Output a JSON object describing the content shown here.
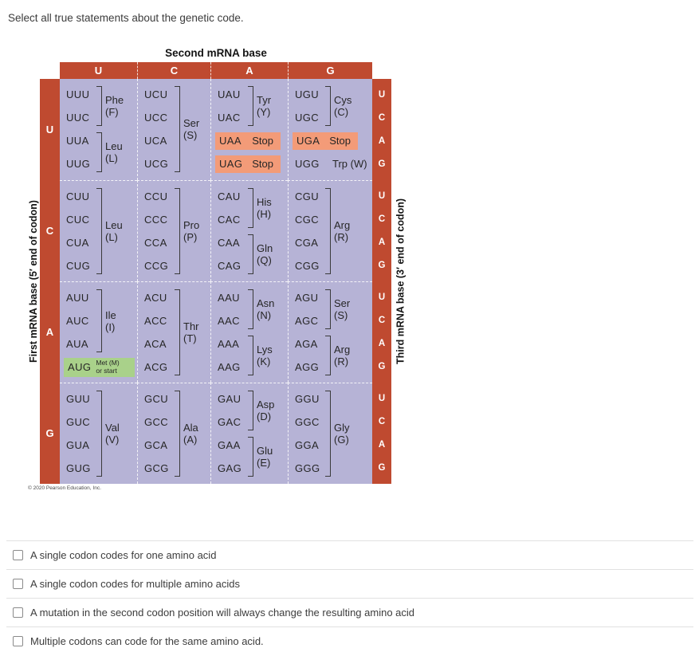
{
  "question": "Select all true statements about the genetic code.",
  "table": {
    "title": "Second mRNA base",
    "left_axis_label": "First mRNA base  (5′ end of codon)",
    "right_axis_label": "Third mRNA base  (3′ end of codon)",
    "column_headers": [
      "U",
      "C",
      "A",
      "G"
    ],
    "row_headers": [
      "U",
      "C",
      "A",
      "G"
    ],
    "third_base_letters": [
      "U",
      "C",
      "A",
      "G"
    ],
    "copyright": "© 2020 Pearson Education, Inc.",
    "colors": {
      "bar_red": "#bf4a30",
      "body_lavender": "#b6b3d6",
      "stop_highlight": "#f39b78",
      "start_highlight": "#a9d18a"
    },
    "cells": [
      [
        {
          "groups": [
            {
              "codons": [
                "UUU",
                "UUC"
              ],
              "bracket": true,
              "name": "Phe",
              "letter": "(F)"
            },
            {
              "codons": [
                "UUA",
                "UUG"
              ],
              "bracket": true,
              "name": "Leu",
              "letter": "(L)"
            }
          ]
        },
        {
          "groups": [
            {
              "codons": [
                "UCU",
                "UCC",
                "UCA",
                "UCG"
              ],
              "bracket": true,
              "name": "Ser",
              "letter": "(S)"
            }
          ]
        },
        {
          "groups": [
            {
              "codons": [
                "UAU",
                "UAC"
              ],
              "bracket": true,
              "name": "Tyr",
              "letter": "(Y)"
            },
            {
              "codons": [
                "UAA"
              ],
              "highlight": "stop",
              "stop_label": "Stop"
            },
            {
              "codons": [
                "UAG"
              ],
              "highlight": "stop",
              "stop_label": "Stop"
            }
          ]
        },
        {
          "groups": [
            {
              "codons": [
                "UGU",
                "UGC"
              ],
              "bracket": true,
              "name": "Cys",
              "letter": "(C)"
            },
            {
              "codons": [
                "UGA"
              ],
              "highlight": "stop",
              "stop_label": "Stop"
            },
            {
              "codons": [
                "UGG"
              ],
              "inline_label": "Trp (W)"
            }
          ]
        }
      ],
      [
        {
          "groups": [
            {
              "codons": [
                "CUU",
                "CUC",
                "CUA",
                "CUG"
              ],
              "bracket": true,
              "name": "Leu",
              "letter": "(L)"
            }
          ]
        },
        {
          "groups": [
            {
              "codons": [
                "CCU",
                "CCC",
                "CCA",
                "CCG"
              ],
              "bracket": true,
              "name": "Pro",
              "letter": "(P)"
            }
          ]
        },
        {
          "groups": [
            {
              "codons": [
                "CAU",
                "CAC"
              ],
              "bracket": true,
              "name": "His",
              "letter": "(H)"
            },
            {
              "codons": [
                "CAA",
                "CAG"
              ],
              "bracket": true,
              "name": "Gln",
              "letter": "(Q)"
            }
          ]
        },
        {
          "groups": [
            {
              "codons": [
                "CGU",
                "CGC",
                "CGA",
                "CGG"
              ],
              "bracket": true,
              "name": "Arg",
              "letter": "(R)"
            }
          ]
        }
      ],
      [
        {
          "groups": [
            {
              "codons": [
                "AUU",
                "AUC",
                "AUA"
              ],
              "bracket": true,
              "name": "Ile",
              "letter": "(I)"
            },
            {
              "codons": [
                "AUG"
              ],
              "highlight": "start",
              "start_lines": [
                "Met (M)",
                "or start"
              ]
            }
          ]
        },
        {
          "groups": [
            {
              "codons": [
                "ACU",
                "ACC",
                "ACA",
                "ACG"
              ],
              "bracket": true,
              "name": "Thr",
              "letter": "(T)"
            }
          ]
        },
        {
          "groups": [
            {
              "codons": [
                "AAU",
                "AAC"
              ],
              "bracket": true,
              "name": "Asn",
              "letter": "(N)"
            },
            {
              "codons": [
                "AAA",
                "AAG"
              ],
              "bracket": true,
              "name": "Lys",
              "letter": "(K)"
            }
          ]
        },
        {
          "groups": [
            {
              "codons": [
                "AGU",
                "AGC"
              ],
              "bracket": true,
              "name": "Ser",
              "letter": "(S)"
            },
            {
              "codons": [
                "AGA",
                "AGG"
              ],
              "bracket": true,
              "name": "Arg",
              "letter": "(R)"
            }
          ]
        }
      ],
      [
        {
          "groups": [
            {
              "codons": [
                "GUU",
                "GUC",
                "GUA",
                "GUG"
              ],
              "bracket": true,
              "name": "Val",
              "letter": "(V)"
            }
          ]
        },
        {
          "groups": [
            {
              "codons": [
                "GCU",
                "GCC",
                "GCA",
                "GCG"
              ],
              "bracket": true,
              "name": "Ala",
              "letter": "(A)"
            }
          ]
        },
        {
          "groups": [
            {
              "codons": [
                "GAU",
                "GAC"
              ],
              "bracket": true,
              "name": "Asp",
              "letter": "(D)"
            },
            {
              "codons": [
                "GAA",
                "GAG"
              ],
              "bracket": true,
              "name": "Glu",
              "letter": "(E)"
            }
          ]
        },
        {
          "groups": [
            {
              "codons": [
                "GGU",
                "GGC",
                "GGA",
                "GGG"
              ],
              "bracket": true,
              "name": "Gly",
              "letter": "(G)"
            }
          ]
        }
      ]
    ]
  },
  "options": [
    {
      "label": "A single codon codes for one amino acid",
      "checked": false
    },
    {
      "label": "A single codon codes for multiple amino acids",
      "checked": false
    },
    {
      "label": "A mutation in the second codon position will always change the resulting amino acid",
      "checked": false
    },
    {
      "label": "Multiple codons can code for the same amino acid.",
      "checked": false
    }
  ]
}
